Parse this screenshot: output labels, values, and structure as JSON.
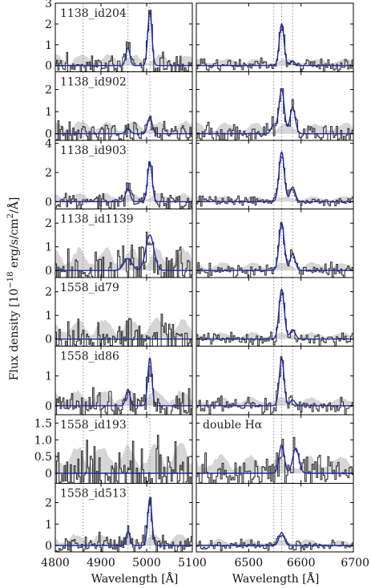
{
  "chart_data": {
    "type": "line",
    "ylabel": "Flux density [10$^{-18}$ erg/s/cm$^2$/Å]",
    "ylabel_parts": {
      "main": "Flux density [10",
      "sup1": "−18",
      "mid": " erg/s/cm",
      "sup2": "2",
      "end": "/Å]"
    },
    "grid": false,
    "legend": "none",
    "columns": [
      {
        "xlabel": "Wavelength [Å]",
        "xlim": [
          4800,
          5100
        ],
        "xticks": [
          4800,
          4900,
          5000,
          5100
        ],
        "xtick_labels": [
          "4800",
          "4900",
          "5000",
          "5100"
        ],
        "reference_lines": [
          4861,
          4959,
          5007
        ]
      },
      {
        "xlabel": "Wavelength [Å]",
        "xlim": [
          6400,
          6700
        ],
        "xticks": [
          6500,
          6600,
          6700
        ],
        "xtick_labels": [
          "6500",
          "6600",
          "6700"
        ],
        "reference_lines": [
          6548,
          6563,
          6584
        ]
      }
    ],
    "colors": {
      "spectrum": "#333333",
      "model": "#1f2aa8",
      "noise": "#d6d6d6",
      "ref": "#8c8c8c"
    },
    "rows": [
      {
        "label": "1138_id204",
        "note": "",
        "ylim": [
          -0.3,
          3.0
        ],
        "yticks": [
          0,
          1,
          2,
          3
        ],
        "left": {
          "lines": [
            {
              "x": 5007,
              "amp": 2.6,
              "sigma": 4.5
            },
            {
              "x": 4959,
              "amp": 0.85,
              "sigma": 4.5
            }
          ],
          "noise": 0.55
        },
        "right": {
          "lines": [
            {
              "x": 6563,
              "amp": 2.0,
              "sigma": 4.5
            },
            {
              "x": 6584,
              "amp": 0.2,
              "sigma": 4.5
            }
          ],
          "noise": 0.35
        }
      },
      {
        "label": "1138_id902",
        "note": "",
        "ylim": [
          -0.3,
          2.8
        ],
        "yticks": [
          0,
          1,
          2
        ],
        "left": {
          "lines": [
            {
              "x": 5007,
              "amp": 0.75,
              "sigma": 5
            },
            {
              "x": 4959,
              "amp": 0.25,
              "sigma": 5
            }
          ],
          "noise": 0.6
        },
        "right": {
          "lines": [
            {
              "x": 6563,
              "amp": 2.0,
              "sigma": 5
            },
            {
              "x": 6584,
              "amp": 1.2,
              "sigma": 5
            },
            {
              "x": 6548,
              "amp": 0.4,
              "sigma": 5
            }
          ],
          "noise": 0.5
        }
      },
      {
        "label": "1138_id903",
        "note": "",
        "ylim": [
          -0.5,
          4.2
        ],
        "yticks": [
          0,
          2,
          4
        ],
        "left": {
          "lines": [
            {
              "x": 5007,
              "amp": 2.7,
              "sigma": 5
            },
            {
              "x": 4959,
              "amp": 0.9,
              "sigma": 5
            }
          ],
          "noise": 0.6
        },
        "right": {
          "lines": [
            {
              "x": 6563,
              "amp": 3.4,
              "sigma": 5
            },
            {
              "x": 6584,
              "amp": 1.0,
              "sigma": 5
            }
          ],
          "noise": 0.4
        }
      },
      {
        "label": "1138_id1139",
        "note": "",
        "ylim": [
          -0.3,
          2.6
        ],
        "yticks": [
          0,
          1,
          2
        ],
        "left": {
          "lines": [
            {
              "x": 5007,
              "amp": 1.5,
              "sigma": 9
            },
            {
              "x": 4959,
              "amp": 0.5,
              "sigma": 9
            }
          ],
          "noise": 1.0
        },
        "right": {
          "lines": [
            {
              "x": 6563,
              "amp": 2.0,
              "sigma": 5
            },
            {
              "x": 6584,
              "amp": 0.7,
              "sigma": 5
            }
          ],
          "noise": 0.35
        }
      },
      {
        "label": "1558_id79",
        "note": "",
        "ylim": [
          -0.3,
          2.6
        ],
        "yticks": [
          0,
          1,
          2
        ],
        "left": {
          "lines": [],
          "noise": 0.9
        },
        "right": {
          "lines": [
            {
              "x": 6563,
              "amp": 2.1,
              "sigma": 5
            },
            {
              "x": 6584,
              "amp": 0.4,
              "sigma": 5
            }
          ],
          "noise": 0.3
        }
      },
      {
        "label": "1558_id86",
        "note": "",
        "ylim": [
          -0.3,
          2.0
        ],
        "yticks": [
          0,
          1
        ],
        "left": {
          "lines": [
            {
              "x": 5007,
              "amp": 1.6,
              "sigma": 4.5
            },
            {
              "x": 4959,
              "amp": 0.55,
              "sigma": 4.5
            }
          ],
          "noise": 0.55
        },
        "right": {
          "lines": [
            {
              "x": 6563,
              "amp": 1.6,
              "sigma": 4.5
            },
            {
              "x": 6584,
              "amp": 0.2,
              "sigma": 4.5
            }
          ],
          "noise": 0.3
        }
      },
      {
        "label": "1558_id193",
        "note": "double Hα",
        "ylim": [
          -0.3,
          1.75
        ],
        "yticks": [
          0,
          0.5,
          1.0,
          1.5
        ],
        "ytick_labels": [
          "0",
          "0.5",
          "1.0",
          "1.5"
        ],
        "left": {
          "lines": [],
          "noise": 0.9
        },
        "right": {
          "lines": [
            {
              "x": 6563,
              "amp": 0.85,
              "sigma": 5
            },
            {
              "x": 6590,
              "amp": 0.75,
              "sigma": 6
            }
          ],
          "noise": 0.55
        }
      },
      {
        "label": "1558_id513",
        "note": "",
        "ylim": [
          -0.3,
          2.9
        ],
        "yticks": [
          0,
          1,
          2
        ],
        "left": {
          "lines": [
            {
              "x": 5007,
              "amp": 2.2,
              "sigma": 4.5
            },
            {
              "x": 4959,
              "amp": 0.65,
              "sigma": 4.5
            }
          ],
          "noise": 0.55
        },
        "right": {
          "lines": [
            {
              "x": 6563,
              "amp": 0.6,
              "sigma": 5
            }
          ],
          "noise": 0.3
        }
      }
    ]
  }
}
